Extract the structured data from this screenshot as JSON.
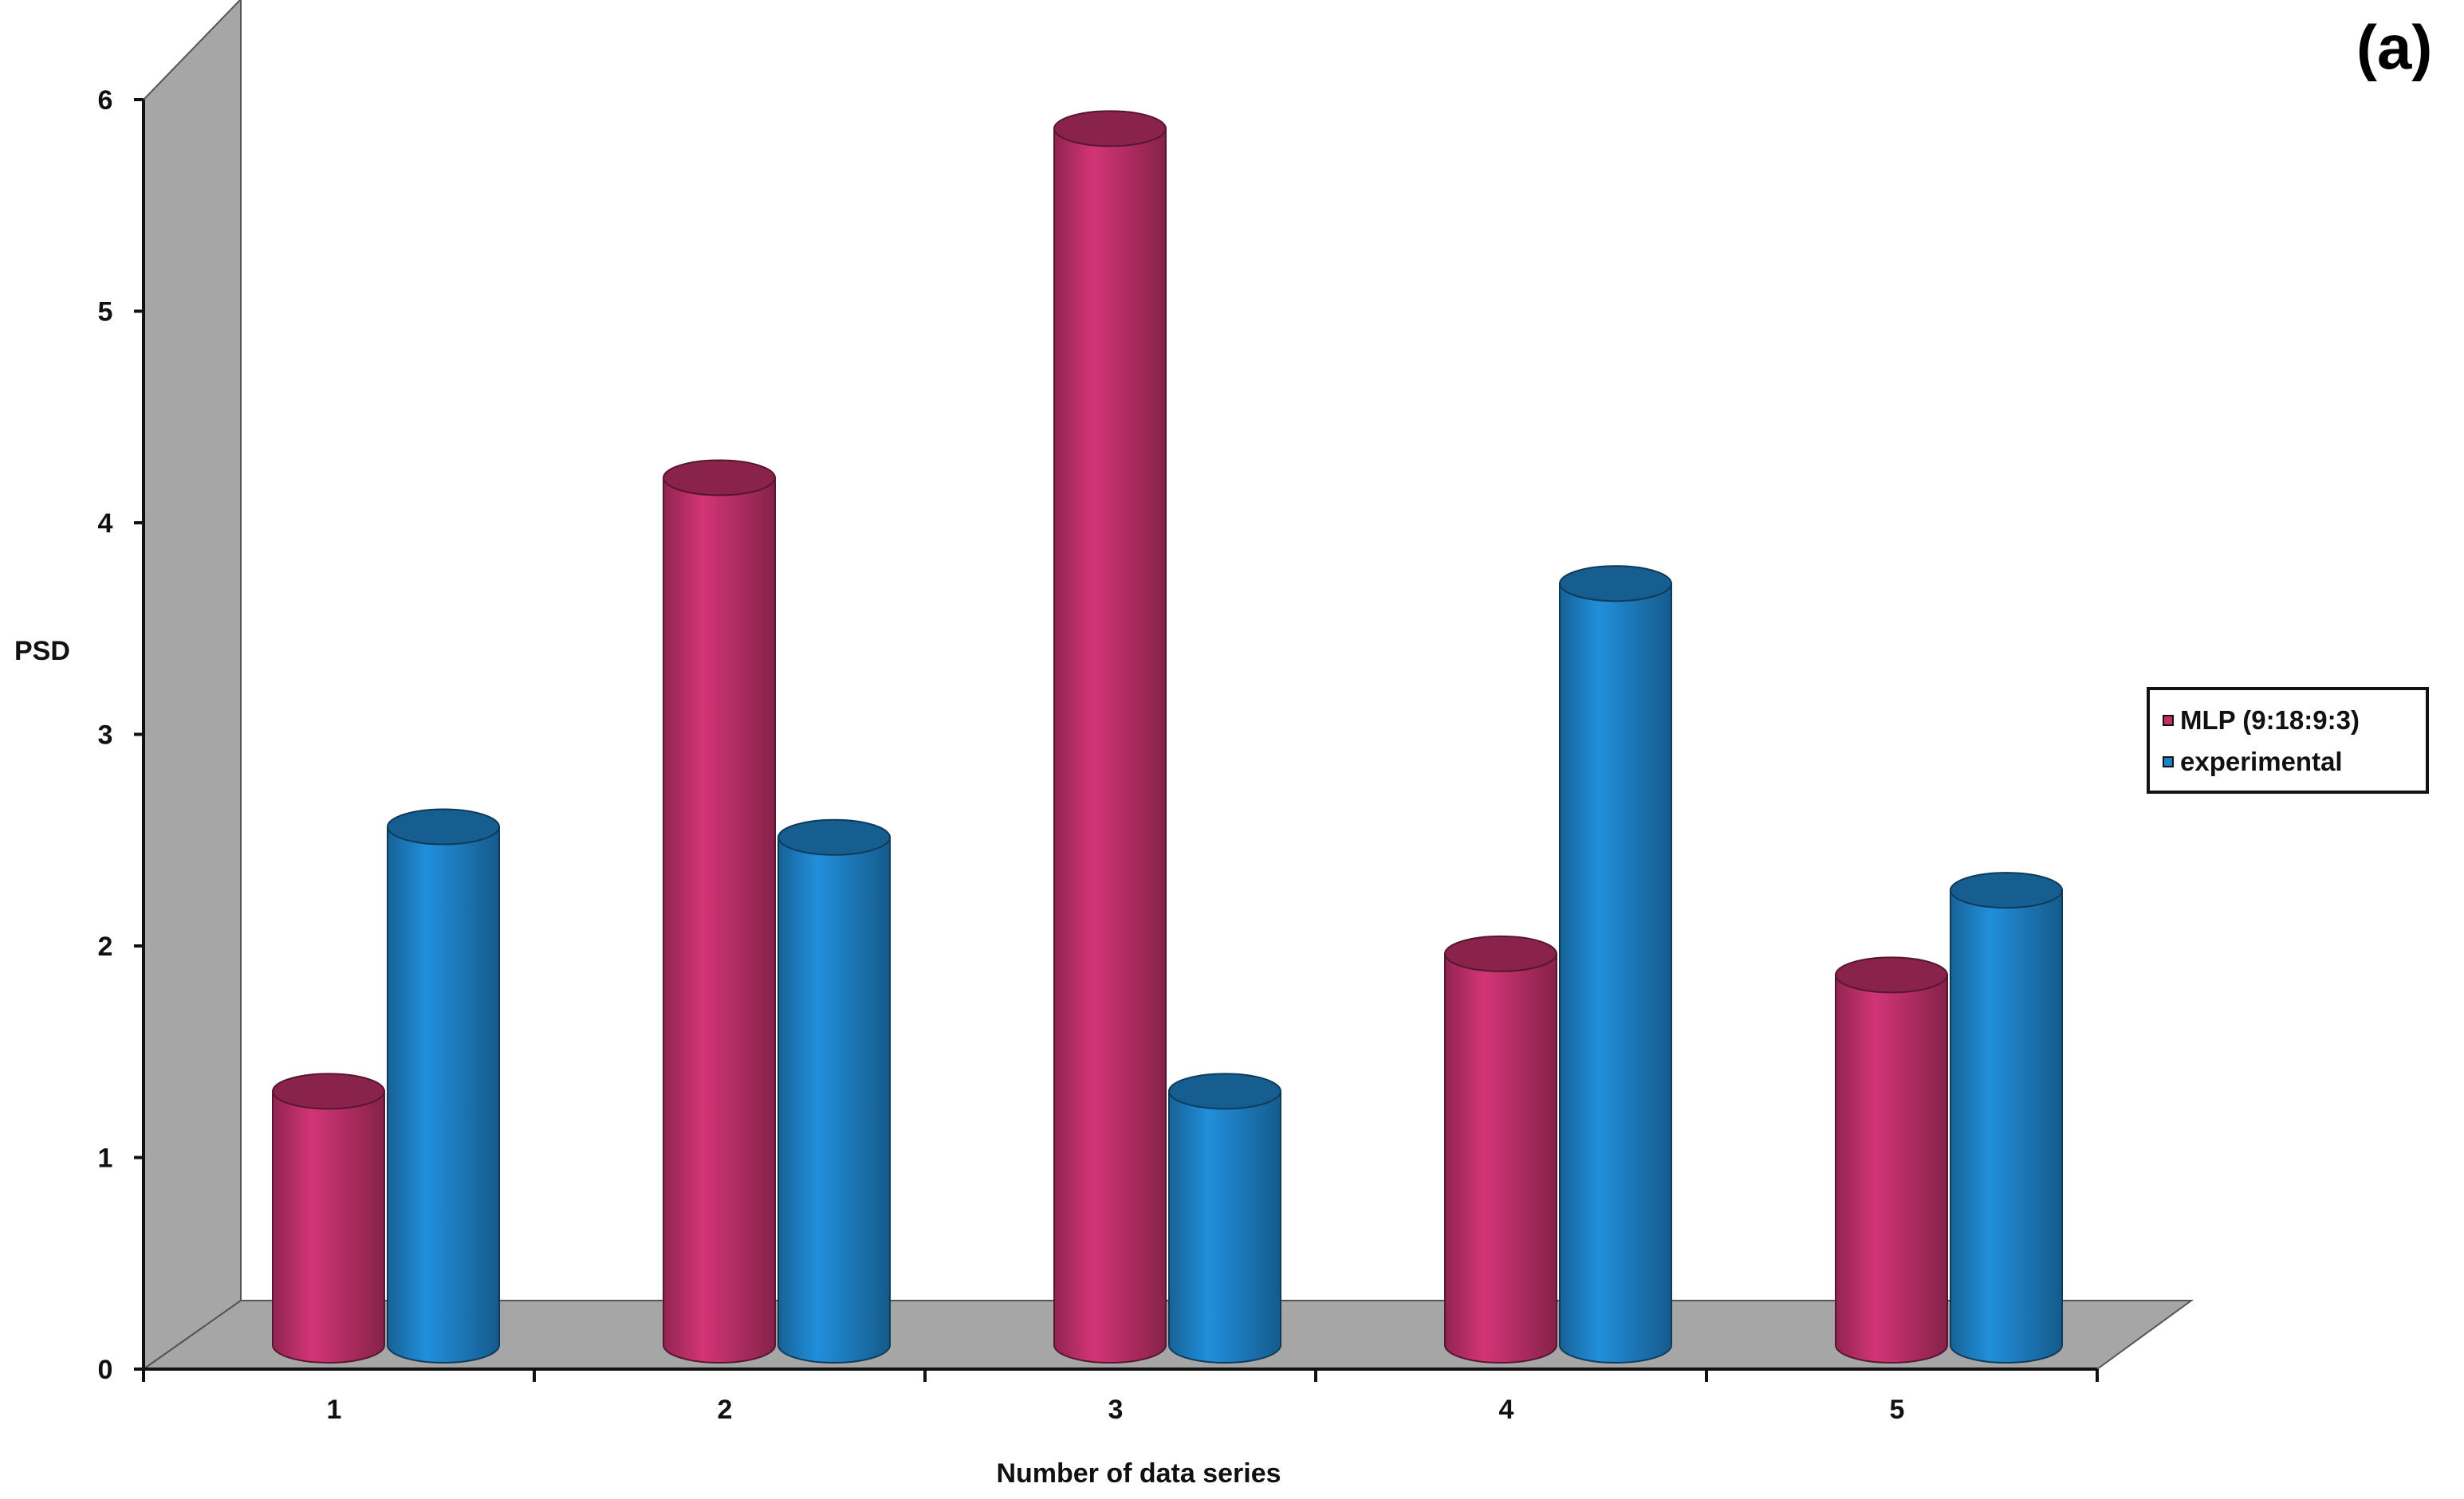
{
  "chart_data": {
    "type": "bar",
    "panel_label": "(a)",
    "xlabel": "Number of data series",
    "ylabel": "PSD",
    "categories": [
      "1",
      "2",
      "3",
      "4",
      "5"
    ],
    "ylim": [
      0,
      6
    ],
    "yticks": [
      "0",
      "1",
      "2",
      "3",
      "4",
      "5",
      "6"
    ],
    "series": [
      {
        "name": "MLP (9:18:9:3)",
        "values": [
          1.2,
          4.1,
          5.75,
          1.85,
          1.75
        ],
        "color": "#C0306A"
      },
      {
        "name": "experimental",
        "values": [
          2.45,
          2.4,
          1.2,
          3.6,
          2.15
        ],
        "color": "#1E82C8"
      }
    ],
    "legend_position": "right",
    "style": "3d-cylinder",
    "floor_color": "#A6A6A6",
    "wall_color": "#A6A6A6"
  }
}
